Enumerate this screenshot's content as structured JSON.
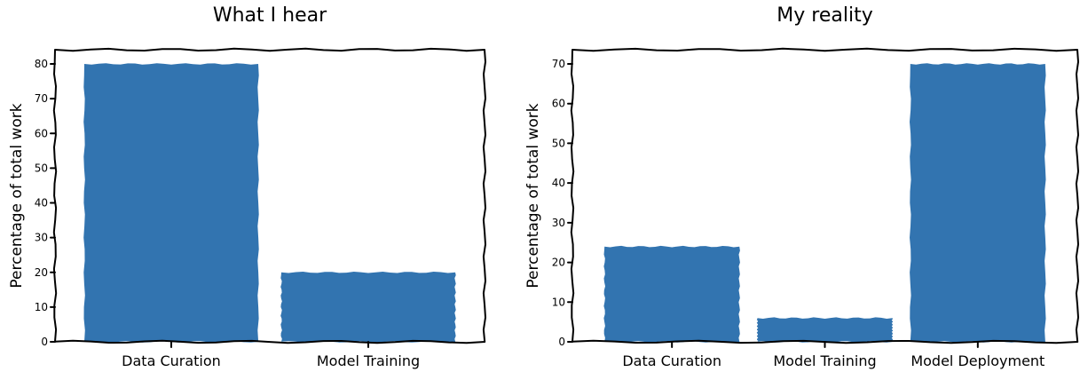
{
  "chart_data": [
    {
      "type": "bar",
      "title": "What I hear",
      "ylabel": "Percentage of total work",
      "xlabel": "",
      "categories": [
        "Data Curation",
        "Model Training"
      ],
      "values": [
        80,
        20
      ],
      "ylim": [
        0,
        80
      ],
      "yticks": [
        0,
        10,
        20,
        30,
        40,
        50,
        60,
        70,
        80
      ],
      "grid": false,
      "bar_color": "#3274b0"
    },
    {
      "type": "bar",
      "title": "My reality",
      "ylabel": "Percentage of total work",
      "xlabel": "",
      "categories": [
        "Data Curation",
        "Model Training",
        "Model Deployment"
      ],
      "values": [
        24,
        6,
        70
      ],
      "ylim": [
        0,
        70
      ],
      "yticks": [
        0,
        10,
        20,
        30,
        40,
        50,
        60,
        70
      ],
      "grid": false,
      "bar_color": "#3274b0"
    }
  ]
}
